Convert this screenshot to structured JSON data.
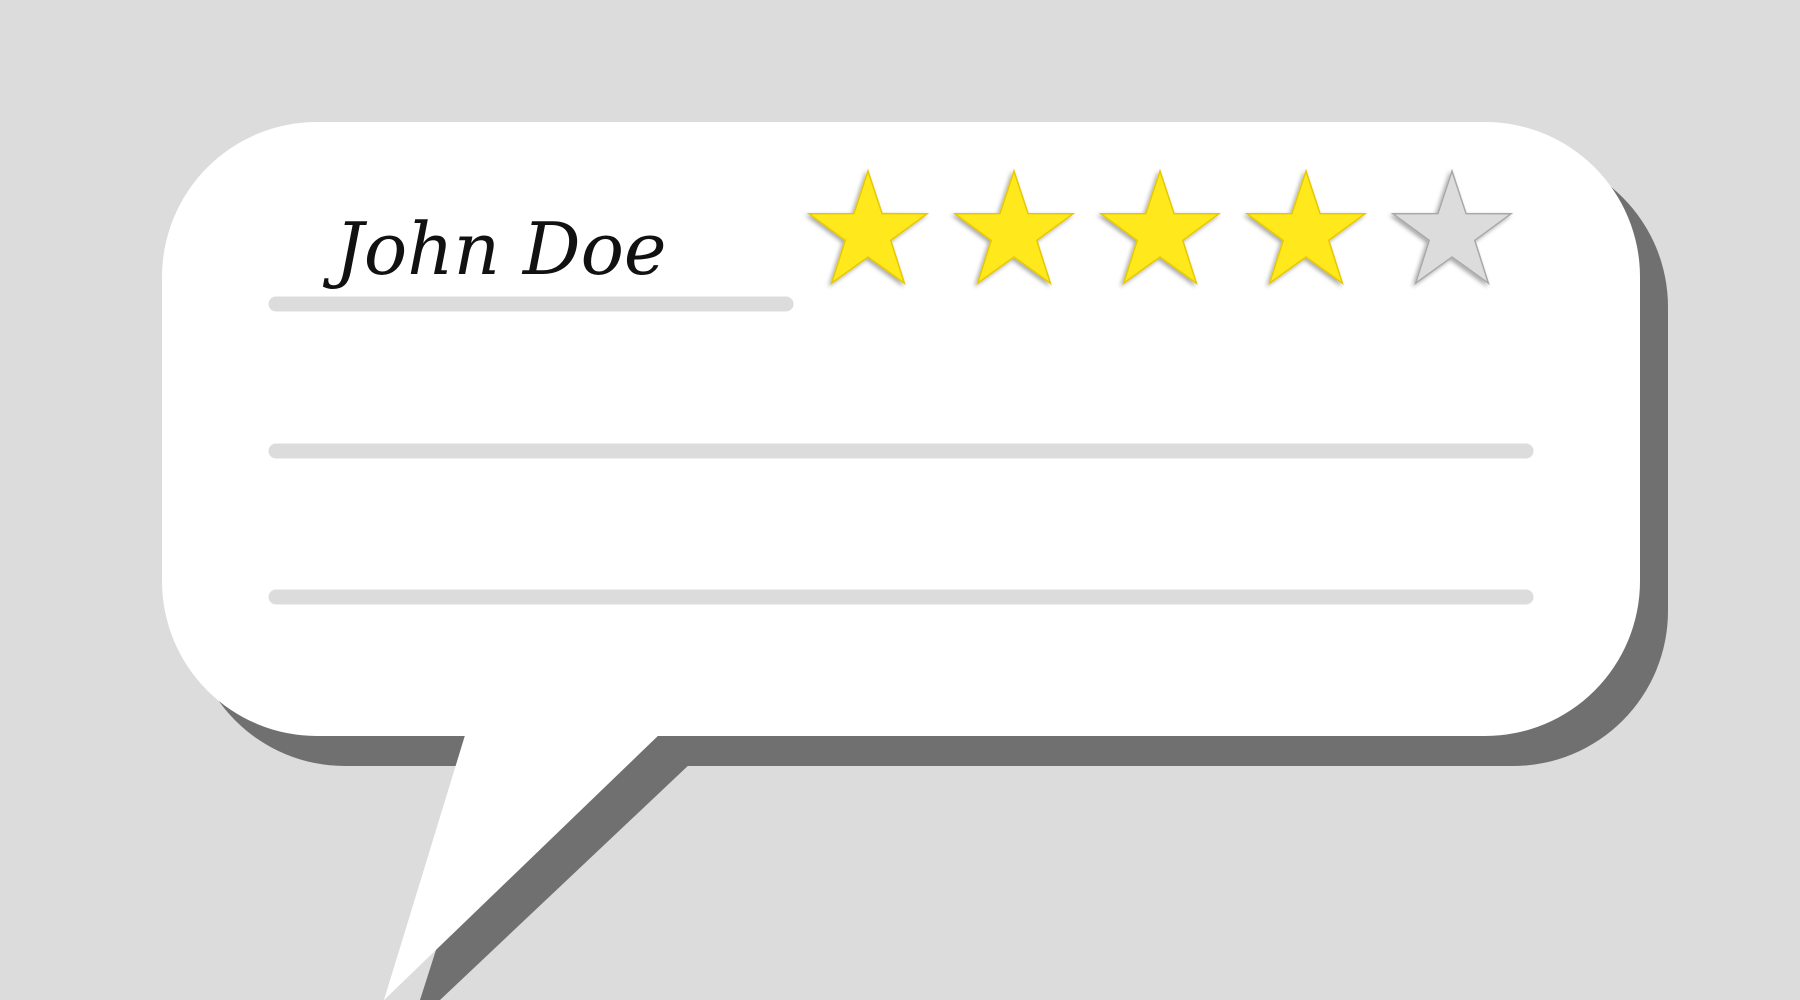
{
  "review": {
    "reviewer_name": "John Doe",
    "rating": 4,
    "max_rating": 5
  },
  "colors": {
    "background": "#dcdcdc",
    "bubble": "#ffffff",
    "bubble_shadow": "#707070",
    "line": "#dcdcdc",
    "star_filled": "#ffe81a",
    "star_filled_edge": "#e6c800",
    "star_empty": "#dcdcdc",
    "star_empty_edge": "#a8a8a8"
  },
  "icons": {
    "star_filled": "star-filled-icon",
    "star_empty": "star-empty-icon"
  }
}
